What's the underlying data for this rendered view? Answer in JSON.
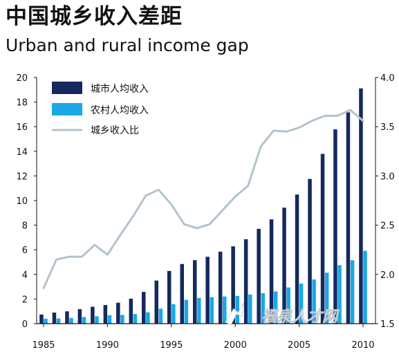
{
  "title_cn": "中国城乡收入差距",
  "title_en": "Urban and rural income gap",
  "colors": {
    "urban": "#15295e",
    "rural": "#1aa7e6",
    "ratio": "#b3c3cc",
    "axis": "#111111"
  },
  "watermark": {
    "text": "福泉人才网",
    "icon": "logo-icon"
  },
  "chart_data": {
    "type": "bar",
    "title": "中国城乡收入差距",
    "subtitle": "Urban and rural income gap",
    "x": [
      1985,
      1986,
      1987,
      1988,
      1989,
      1990,
      1991,
      1992,
      1993,
      1994,
      1995,
      1996,
      1997,
      1998,
      1999,
      2000,
      2001,
      2002,
      2003,
      2004,
      2005,
      2006,
      2007,
      2008,
      2009,
      2010
    ],
    "series": [
      {
        "name": "城市人均收入",
        "type": "bar",
        "axis": "left",
        "values": [
          0.74,
          0.9,
          1.0,
          1.18,
          1.37,
          1.51,
          1.7,
          2.03,
          2.58,
          3.5,
          4.28,
          4.84,
          5.16,
          5.43,
          5.85,
          6.28,
          6.86,
          7.7,
          8.47,
          9.42,
          10.49,
          11.76,
          13.79,
          15.78,
          17.17,
          19.11
        ]
      },
      {
        "name": "农村人均收入",
        "type": "bar",
        "axis": "left",
        "values": [
          0.4,
          0.42,
          0.46,
          0.54,
          0.6,
          0.69,
          0.71,
          0.78,
          0.92,
          1.22,
          1.58,
          1.93,
          2.09,
          2.16,
          2.21,
          2.25,
          2.37,
          2.48,
          2.62,
          2.94,
          3.25,
          3.59,
          4.14,
          4.76,
          5.15,
          5.92
        ]
      },
      {
        "name": "城乡收入比",
        "type": "line",
        "axis": "right",
        "values": [
          1.86,
          2.15,
          2.18,
          2.18,
          2.3,
          2.2,
          2.4,
          2.59,
          2.8,
          2.86,
          2.71,
          2.51,
          2.47,
          2.51,
          2.65,
          2.79,
          2.9,
          3.3,
          3.46,
          3.45,
          3.49,
          3.56,
          3.61,
          3.61,
          3.67,
          3.56
        ]
      }
    ],
    "y_left": {
      "lim": [
        0,
        20
      ],
      "ticks": [
        "0",
        "2",
        "4",
        "6",
        "8",
        "10",
        "12",
        "14",
        "16",
        "18",
        "20"
      ]
    },
    "y_right": {
      "lim": [
        1.5,
        4.0
      ],
      "ticks": [
        "1.5",
        "2.0",
        "2.5",
        "3.0",
        "3.5",
        "4.0"
      ]
    },
    "x_ticks": [
      "1985",
      "1990",
      "1995",
      "2000",
      "2005",
      "2010"
    ],
    "legend": {
      "placement": "top-left",
      "items": [
        {
          "label": "城市人均收入",
          "marker": "bar",
          "color": "#15295e"
        },
        {
          "label": "农村人均收入",
          "marker": "bar",
          "color": "#1aa7e6"
        },
        {
          "label": "城乡收入比",
          "marker": "line",
          "color": "#b3c3cc"
        }
      ]
    },
    "grid": false
  }
}
